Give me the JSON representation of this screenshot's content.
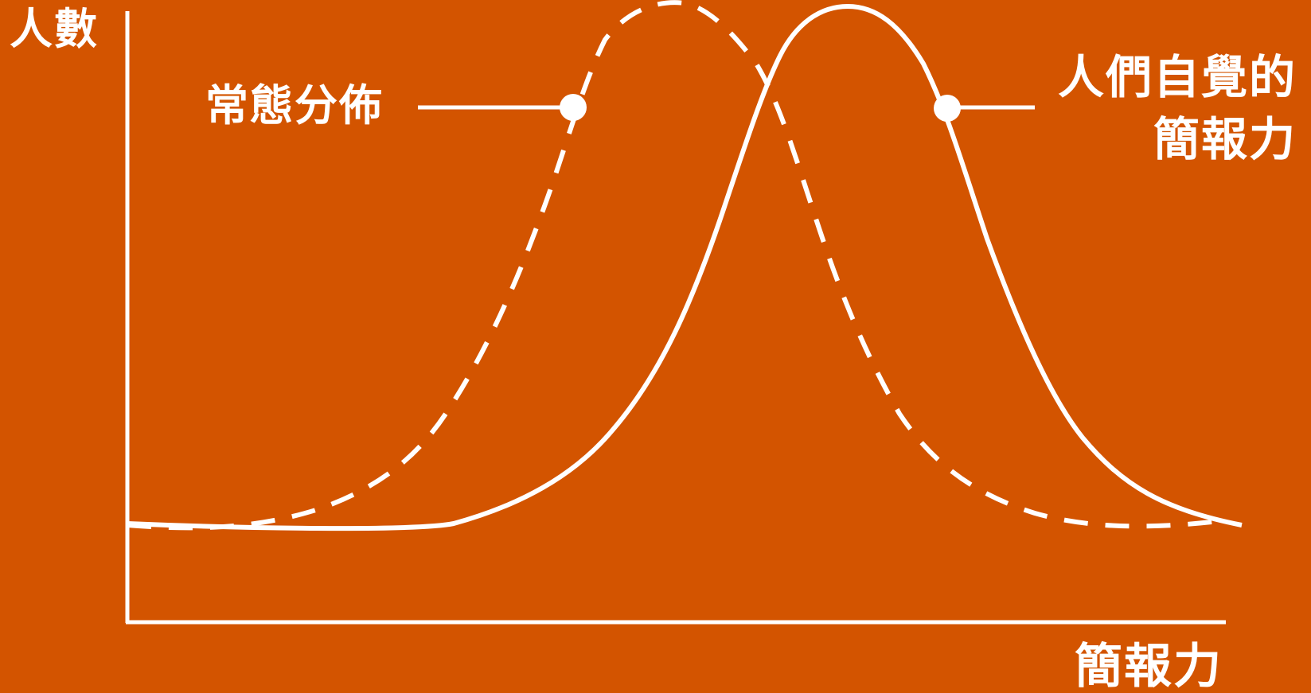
{
  "labels": {
    "y_axis": "人數",
    "x_axis": "簡報力",
    "normal_distribution": "常態分佈",
    "perceived_line1": "人們自覺的",
    "perceived_line2": "簡報力"
  },
  "colors": {
    "background": "#d35400",
    "stroke": "#ffffff"
  }
}
